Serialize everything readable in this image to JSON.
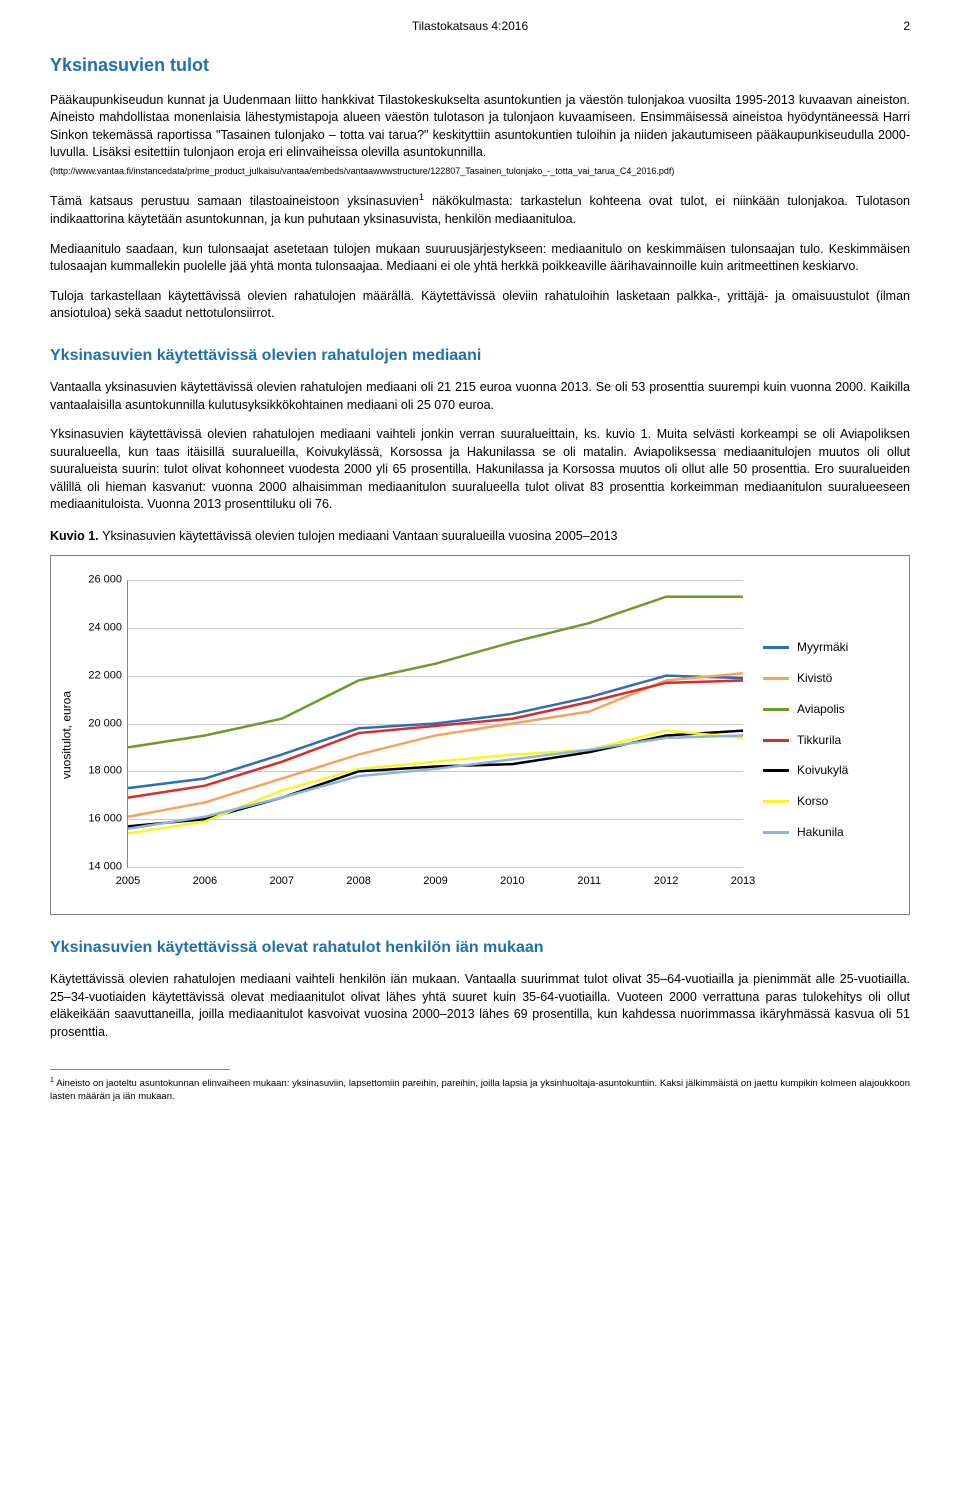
{
  "header": {
    "center": "Tilastokatsaus 4:2016",
    "page": "2"
  },
  "section1": {
    "title": "Yksinasuvien tulot",
    "p1": "Pääkaupunkiseudun kunnat ja Uudenmaan liitto hankkivat Tilastokeskukselta asuntokuntien ja väestön tulonjakoa vuosilta 1995-2013 kuvaavan aineiston. Aineisto mahdollistaa monenlaisia lähestymistapoja alueen väestön tulotason ja tulonjaon kuvaamiseen. Ensimmäisessä aineistoa hyödyntäneessä Harri Sinkon tekemässä raportissa \"Tasainen tulonjako – totta vai tarua?\" keskityttiin asuntokuntien tuloihin ja niiden jakautumiseen pääkaupunkiseudulla 2000-luvulla. Lisäksi esitettiin tulonjaon eroja eri elinvaiheissa olevilla asuntokunnilla.",
    "link": "(http://www.vantaa.fi/instancedata/prime_product_julkaisu/vantaa/embeds/vantaawwwstructure/122807_Tasainen_tulonjako_-_totta_vai_tarua_C4_2016.pdf)",
    "p2a": "Tämä katsaus perustuu samaan tilastoaineistoon yksinasuvien",
    "p2sup": "1",
    "p2b": " näkökulmasta: tarkastelun kohteena ovat tulot, ei niinkään tulonjakoa. Tulotason indikaattorina käytetään asuntokunnan, ja kun puhutaan yksinasuvista, henkilön mediaanituloa.",
    "p3": "Mediaanitulo saadaan, kun tulonsaajat asetetaan tulojen mukaan suuruusjärjestykseen: mediaanitulo on keskimmäisen tulonsaajan tulo. Keskimmäisen tulosaajan kummallekin puolelle jää yhtä monta tulonsaajaa. Mediaani ei ole yhtä herkkä poikkeaville äärihavainnoille kuin aritmeettinen keskiarvo.",
    "p4": "Tuloja tarkastellaan käytettävissä olevien rahatulojen määrällä. Käytettävissä oleviin rahatuloihin lasketaan palkka-, yrittäjä- ja omaisuustulot (ilman ansiotuloa) sekä saadut nettotulonsiirrot."
  },
  "section2": {
    "title": "Yksinasuvien käytettävissä olevien rahatulojen mediaani",
    "p1": "Vantaalla yksinasuvien käytettävissä olevien rahatulojen mediaani oli 21 215 euroa vuonna 2013. Se oli 53 prosenttia suurempi kuin vuonna 2000. Kaikilla vantaalaisilla asuntokunnilla kulutusyksikkökohtainen mediaani oli 25 070 euroa.",
    "p2": "Yksinasuvien käytettävissä olevien rahatulojen mediaani vaihteli jonkin verran suuralueittain, ks. kuvio 1. Muita selvästi korkeampi se oli Aviapoliksen suuralueella, kun taas itäisillä suuralueilla, Koivukylässä, Korsossa ja Hakunilassa se oli matalin. Aviapoliksessa mediaanitulojen muutos oli ollut suuralueista suurin: tulot olivat kohonneet vuodesta 2000 yli 65 prosentilla. Hakunilassa ja Korsossa muutos oli ollut alle 50 prosenttia. Ero suuralueiden välillä oli hieman kasvanut: vuonna 2000 alhaisimman mediaanitulon suuralueella tulot olivat 83 prosenttia korkeimman mediaanitulon suuralueeseen mediaanituloista. Vuonna 2013 prosenttiluku oli 76."
  },
  "figure1": {
    "label": "Kuvio 1.",
    "caption": "Yksinasuvien käytettävissä olevien tulojen mediaani Vantaan suuralueilla vuosina 2005–2013",
    "chart": {
      "type": "line",
      "y_axis_title": "vuositulot, euroa",
      "ylim": [
        14000,
        26000
      ],
      "ytick_step": 2000,
      "yticks": [
        "14 000",
        "16 000",
        "18 000",
        "20 000",
        "22 000",
        "24 000",
        "26 000"
      ],
      "xticks": [
        "2005",
        "2006",
        "2007",
        "2008",
        "2009",
        "2010",
        "2011",
        "2012",
        "2013"
      ],
      "background": "#ffffff",
      "grid_color": "#c8c8c8",
      "axis_color": "#888888",
      "label_fontsize": 11,
      "line_width": 2.5,
      "series": [
        {
          "name": "Myyrmäki",
          "color": "#2e6fb3",
          "values": [
            17300,
            17700,
            18700,
            19800,
            20000,
            20400,
            21100,
            22000,
            21900
          ]
        },
        {
          "name": "Kivistö",
          "color": "#f5a35c",
          "values": [
            16100,
            16700,
            17700,
            18700,
            19500,
            20000,
            20500,
            21800,
            22100
          ]
        },
        {
          "name": "Aviapolis",
          "color": "#6e9a2a",
          "values": [
            19000,
            19500,
            20200,
            21800,
            22500,
            23400,
            24200,
            25300,
            25300
          ]
        },
        {
          "name": "Tikkurila",
          "color": "#e12828",
          "values": [
            16900,
            17400,
            18400,
            19600,
            19900,
            20200,
            20900,
            21700,
            21800
          ]
        },
        {
          "name": "Koivukylä",
          "color": "#000000",
          "values": [
            15700,
            16000,
            16900,
            18000,
            18200,
            18300,
            18800,
            19500,
            19700
          ]
        },
        {
          "name": "Korso",
          "color": "#f9f426",
          "values": [
            15400,
            15900,
            17200,
            18100,
            18400,
            18700,
            18900,
            19700,
            19400
          ]
        },
        {
          "name": "Hakunila",
          "color": "#8fb4d9",
          "values": [
            15600,
            16100,
            16900,
            17800,
            18100,
            18500,
            18900,
            19400,
            19500
          ]
        }
      ]
    }
  },
  "section3": {
    "title": "Yksinasuvien käytettävissä olevat rahatulot henkilön iän mukaan",
    "p1": "Käytettävissä olevien rahatulojen mediaani vaihteli henkilön iän mukaan. Vantaalla suurimmat tulot olivat 35–64-vuotiailla ja pienimmät alle 25-vuotiailla. 25–34-vuotiaiden käytettävissä olevat mediaanitulot olivat lähes yhtä suuret kuin 35-64-vuotiailla. Vuoteen 2000 verrattuna paras tulokehitys oli ollut eläkeikään saavuttaneilla, joilla mediaanitulot kasvoivat vuosina 2000–2013 lähes 69 prosentilla, kun kahdessa nuorimmassa ikäryhmässä kasvua oli 51 prosenttia."
  },
  "footnote": {
    "marker": "1",
    "text": " Aineisto on jaoteltu asuntokunnan elinvaiheen mukaan: yksinasuviin, lapsettomiin pareihin, pareihin, joilla lapsia ja yksinhuoltaja-asuntokuntiin.  Kaksi jälkimmäistä on jaettu kumpikin kolmeen alajoukkoon lasten määrän ja iän mukaan."
  }
}
